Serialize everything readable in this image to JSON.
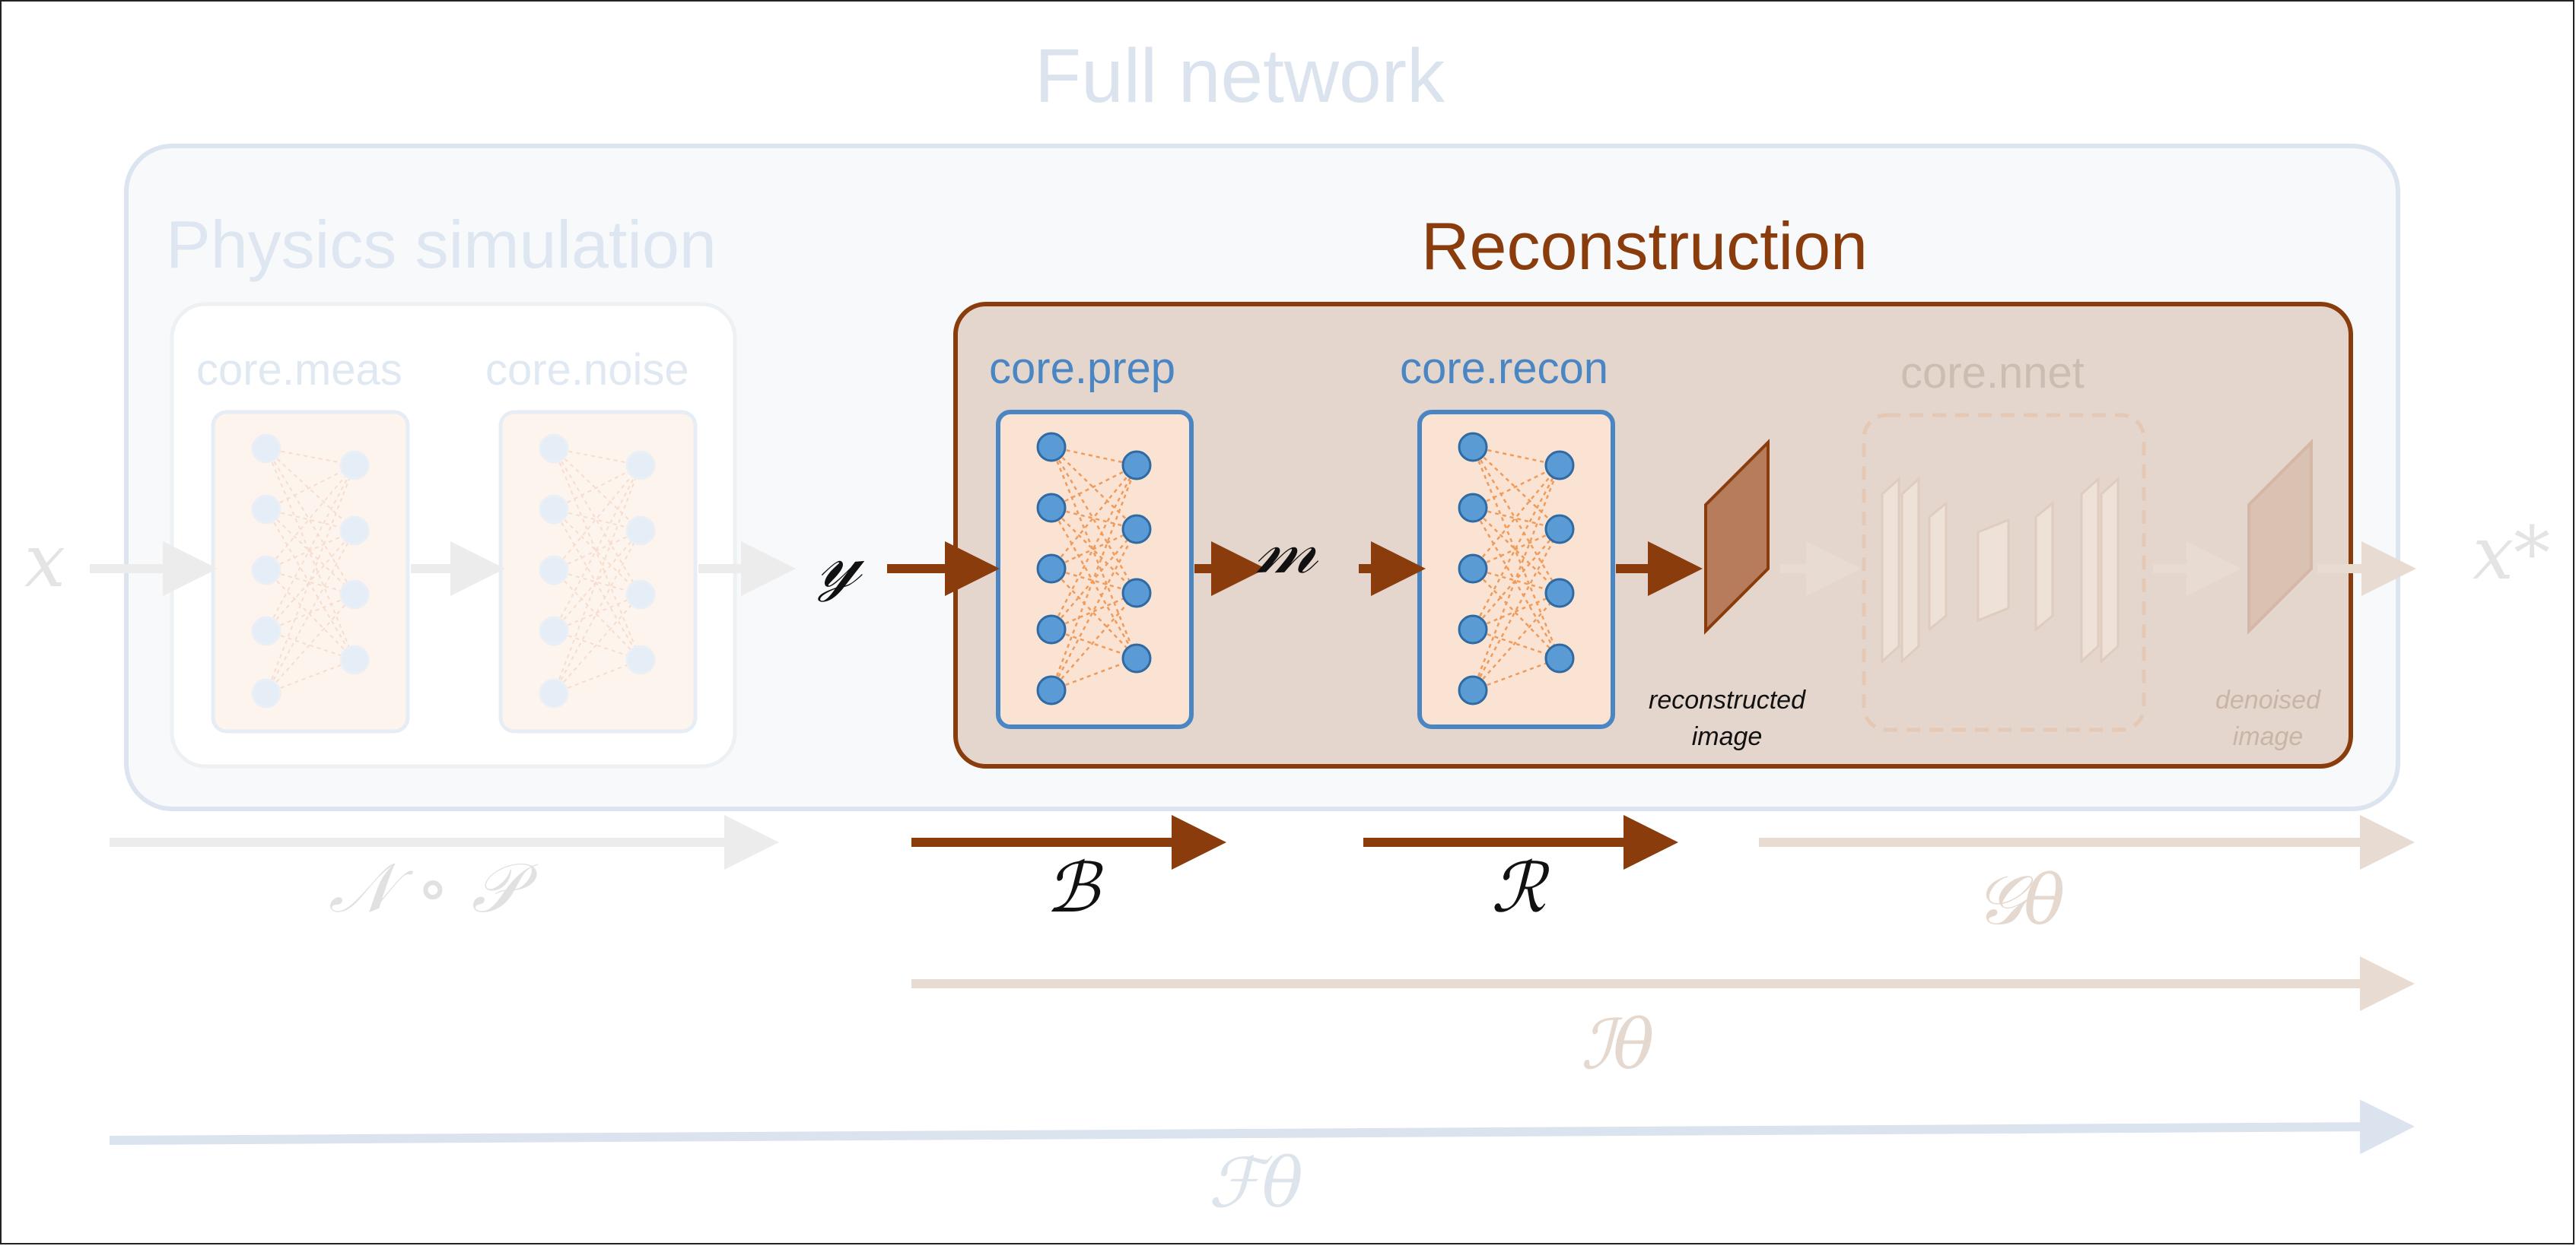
{
  "titles": {
    "full": "Full network",
    "physics": "Physics simulation",
    "reconstruction": "Reconstruction"
  },
  "modules": {
    "meas": "core.meas",
    "noise": "core.noise",
    "prep": "core.prep",
    "recon": "core.recon",
    "nnet": "core.nnet"
  },
  "images": {
    "reconstructed": "reconstructed image",
    "denoised": "denoised image"
  },
  "variables": {
    "x": "x",
    "y": "𝓎",
    "m": "𝓂",
    "x_star": "x*"
  },
  "operators": {
    "np": "𝒩 ∘ 𝒫",
    "b": "ℬ",
    "r": "ℛ",
    "g": "𝒢θ",
    "i": "ℐθ",
    "f": "ℱθ"
  },
  "colors": {
    "accent_brown": "#8a3c0c",
    "module_blue": "#4a86c4",
    "node_fill": "#5b9bd5",
    "faded_blue": "#dbe3ee",
    "faded_brown": "#e4d8cf"
  }
}
